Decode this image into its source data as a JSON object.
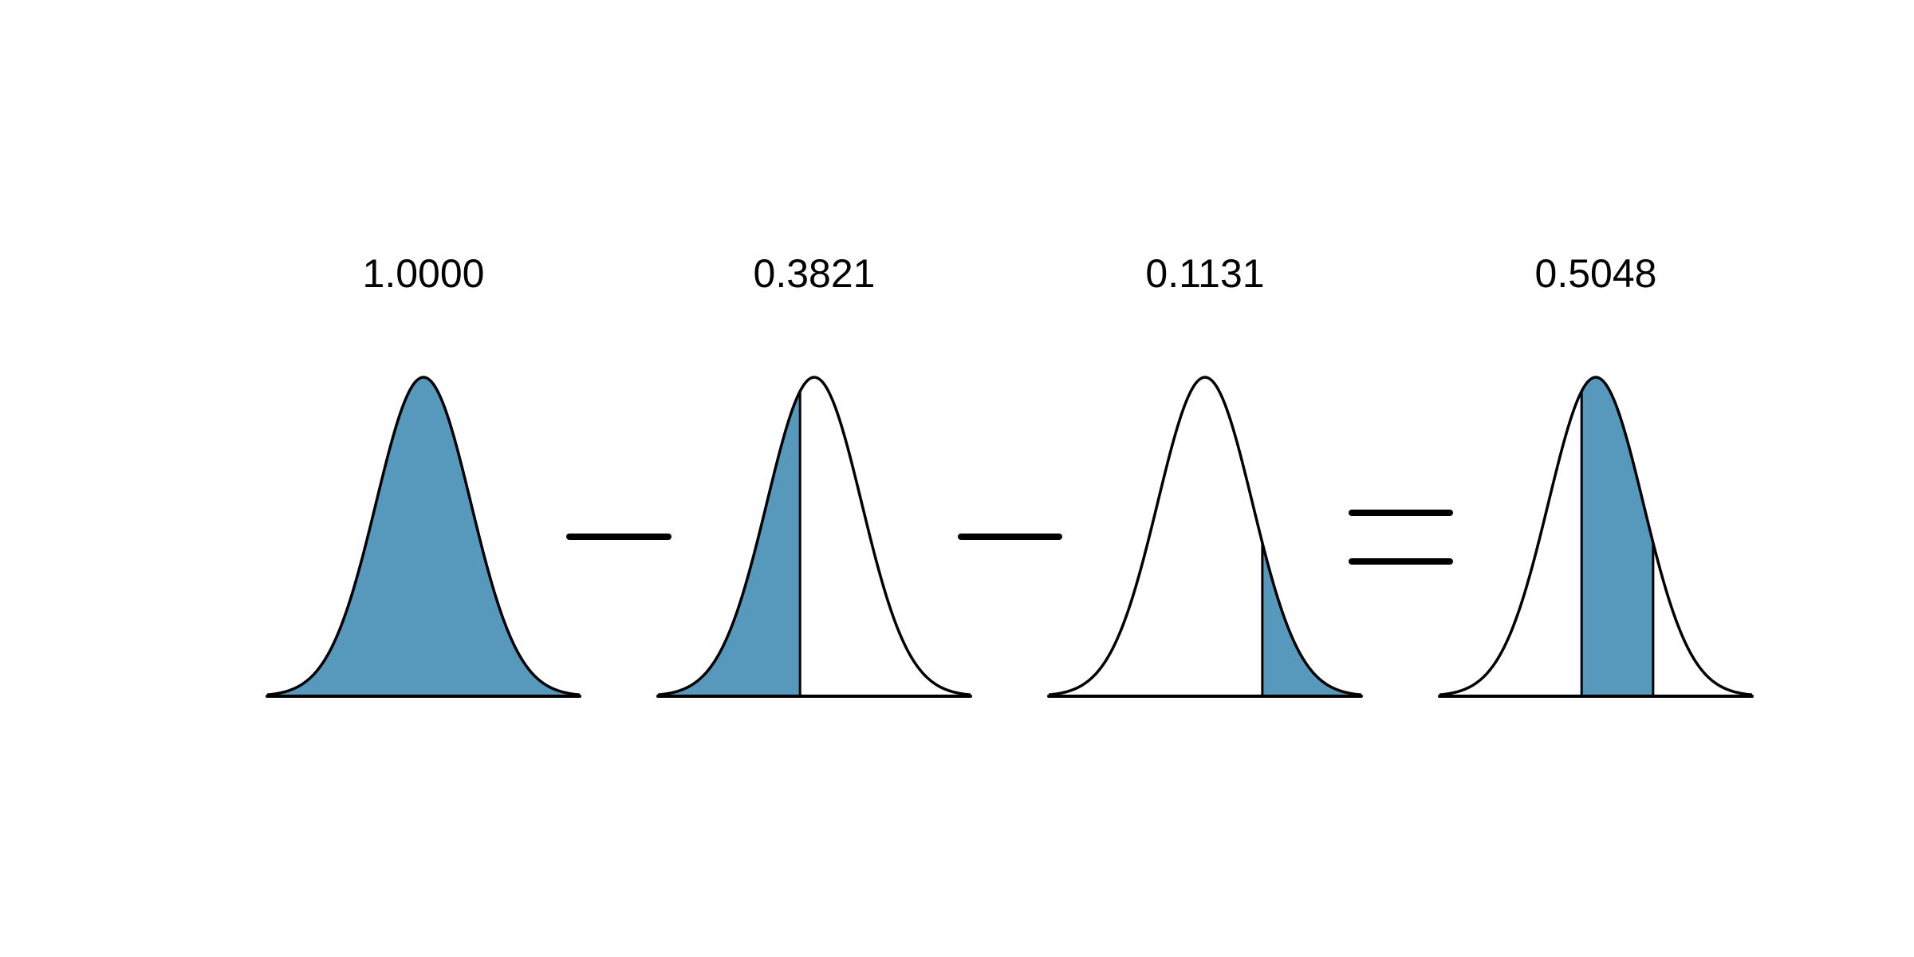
{
  "colors": {
    "shade": "#5799BD",
    "outline": "#000000",
    "background": "#FFFFFF"
  },
  "distribution": "normal",
  "panels": [
    {
      "label": "1.0000",
      "shade": "all"
    },
    {
      "label": "0.3821",
      "shade": "left-tail",
      "upper_z": -0.3
    },
    {
      "label": "0.1131",
      "shade": "right-tail",
      "lower_z": 1.21
    },
    {
      "label": "0.5048",
      "shade": "between",
      "lower_z": -0.3,
      "upper_z": 1.21
    }
  ],
  "operators": [
    "minus",
    "minus",
    "equals"
  ]
}
